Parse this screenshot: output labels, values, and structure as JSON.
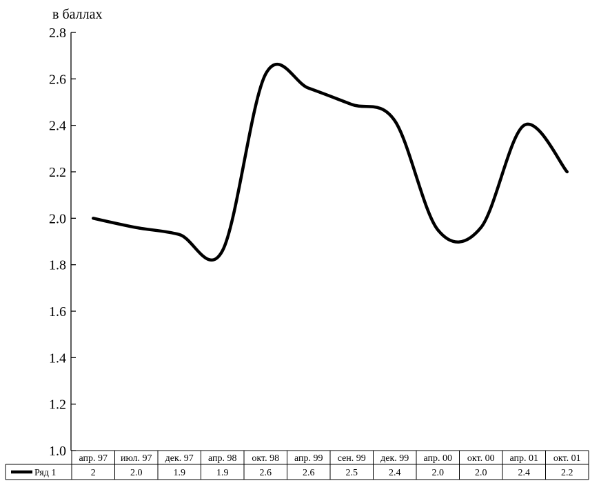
{
  "chart_data": {
    "type": "line",
    "ylabel": "в баллах",
    "ylim": [
      1.0,
      2.8
    ],
    "yticks": [
      "1.0",
      "1.2",
      "1.4",
      "1.6",
      "1.8",
      "2.0",
      "2.2",
      "2.4",
      "2.6",
      "2.8"
    ],
    "categories": [
      "апр. 97",
      "июл. 97",
      "дек. 97",
      "апр. 98",
      "окт. 98",
      "апр. 99",
      "сен. 99",
      "дек. 99",
      "апр. 00",
      "окт. 00",
      "апр. 01",
      "окт. 01"
    ],
    "series": [
      {
        "name": "Ряд 1",
        "values": [
          2.0,
          1.96,
          1.93,
          1.86,
          2.62,
          2.56,
          2.49,
          2.42,
          1.95,
          1.96,
          2.4,
          2.2
        ],
        "table_labels": [
          "2",
          "2.0",
          "1.9",
          "1.9",
          "2.6",
          "2.6",
          "2.5",
          "2.4",
          "2.0",
          "2.0",
          "2.4",
          "2.2"
        ],
        "color": "#000000"
      }
    ],
    "grid": false,
    "legend": "data-table-left"
  }
}
